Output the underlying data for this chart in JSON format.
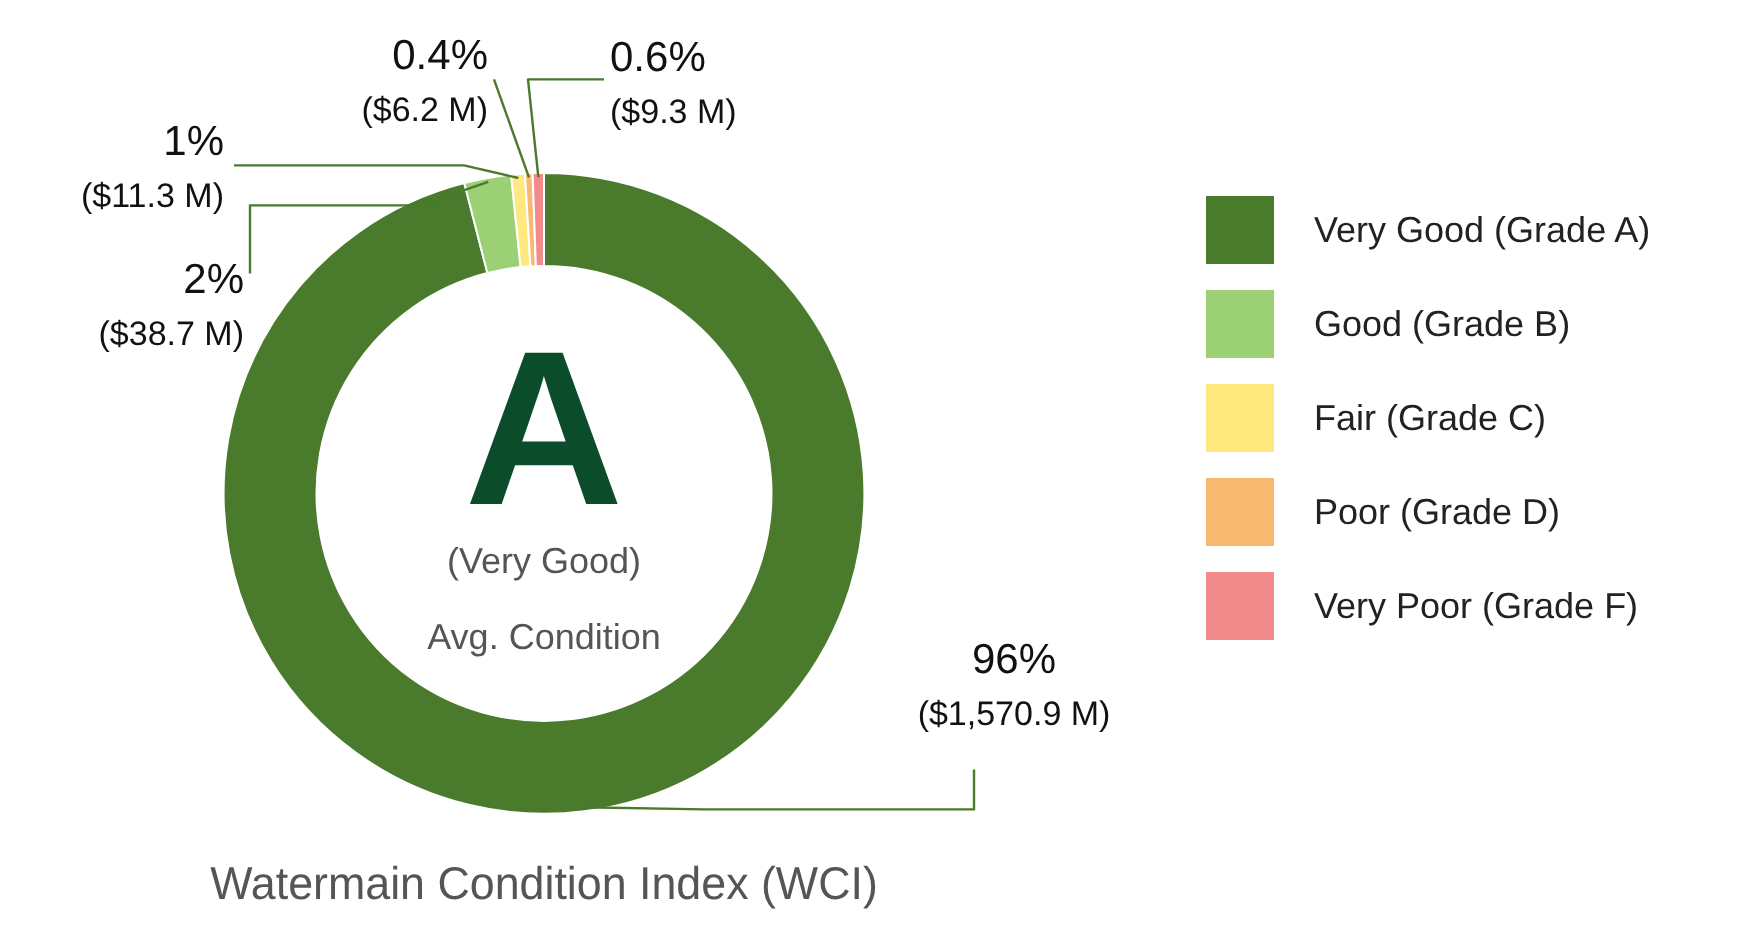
{
  "chart_data": {
    "type": "donut",
    "title": "Watermain Condition Index (WCI)",
    "categories": [
      "Very Good (Grade A)",
      "Good (Grade B)",
      "Fair (Grade C)",
      "Poor (Grade D)",
      "Very Poor (Grade F)"
    ],
    "values": [
      1570.9,
      38.7,
      11.3,
      6.2,
      9.3
    ],
    "value_labels": [
      "96%\n($1,570.9 M)",
      "2%\n($38.7 M)",
      "1%\n($11.3 M)",
      "0.4%\n($6.2 M)",
      "0.6%\n($9.3 M)"
    ],
    "colors": [
      "#4a7a2c",
      "#9bd174",
      "#ffe97f",
      "#f8b870",
      "#f28b8b"
    ],
    "annotations": [
      "A",
      "(Very Good)",
      "Avg. Condition"
    ],
    "legend": "right"
  }
}
